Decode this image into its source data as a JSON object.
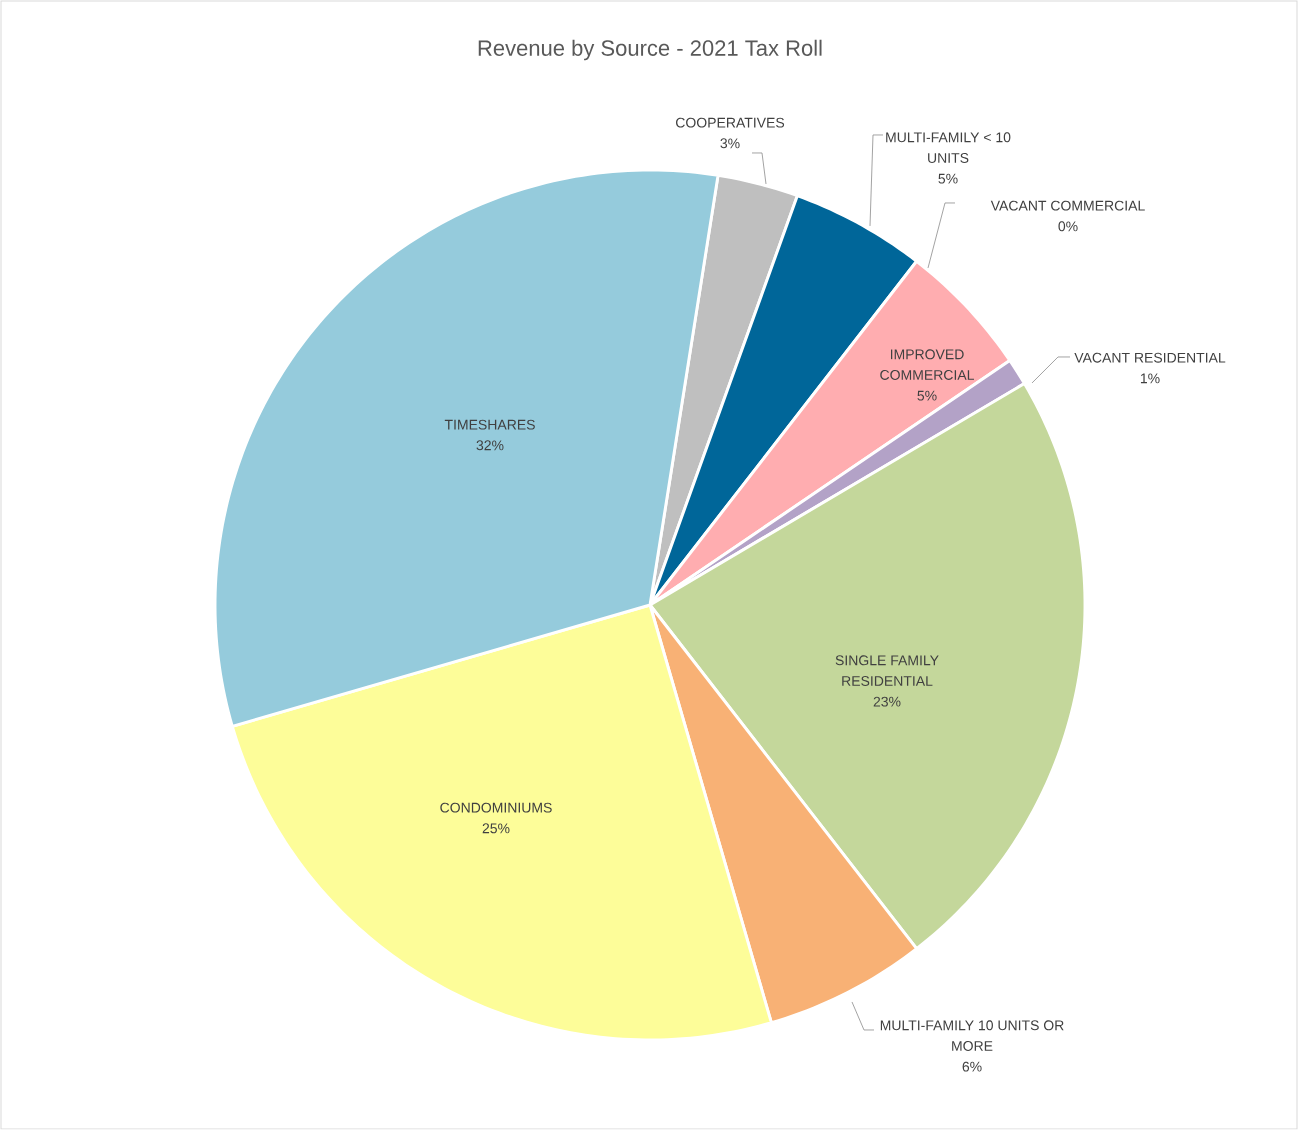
{
  "chart_data": {
    "type": "pie",
    "title": "Revenue by Source - 2021 Tax Roll",
    "categories": [
      "COOPERATIVES",
      "MULTI-FAMILY < 10 UNITS",
      "VACANT COMMERCIAL",
      "IMPROVED COMMERCIAL",
      "VACANT RESIDENTIAL",
      "SINGLE FAMILY RESIDENTIAL",
      "MULTI-FAMILY 10 UNITS OR MORE",
      "CONDOMINIUMS",
      "TIMESHARES"
    ],
    "values": [
      3,
      5,
      0,
      5,
      1,
      23,
      6,
      25,
      32
    ],
    "colors": [
      "#bfbfbf",
      "#006699",
      "#ff8080",
      "#ffadb0",
      "#b3a2c7",
      "#c4d79b",
      "#f8b175",
      "#fdfd99",
      "#95cbdc"
    ],
    "value_labels": [
      "3%",
      "5%",
      "0%",
      "5%",
      "1%",
      "23%",
      "6%",
      "25%",
      "32%"
    ]
  }
}
